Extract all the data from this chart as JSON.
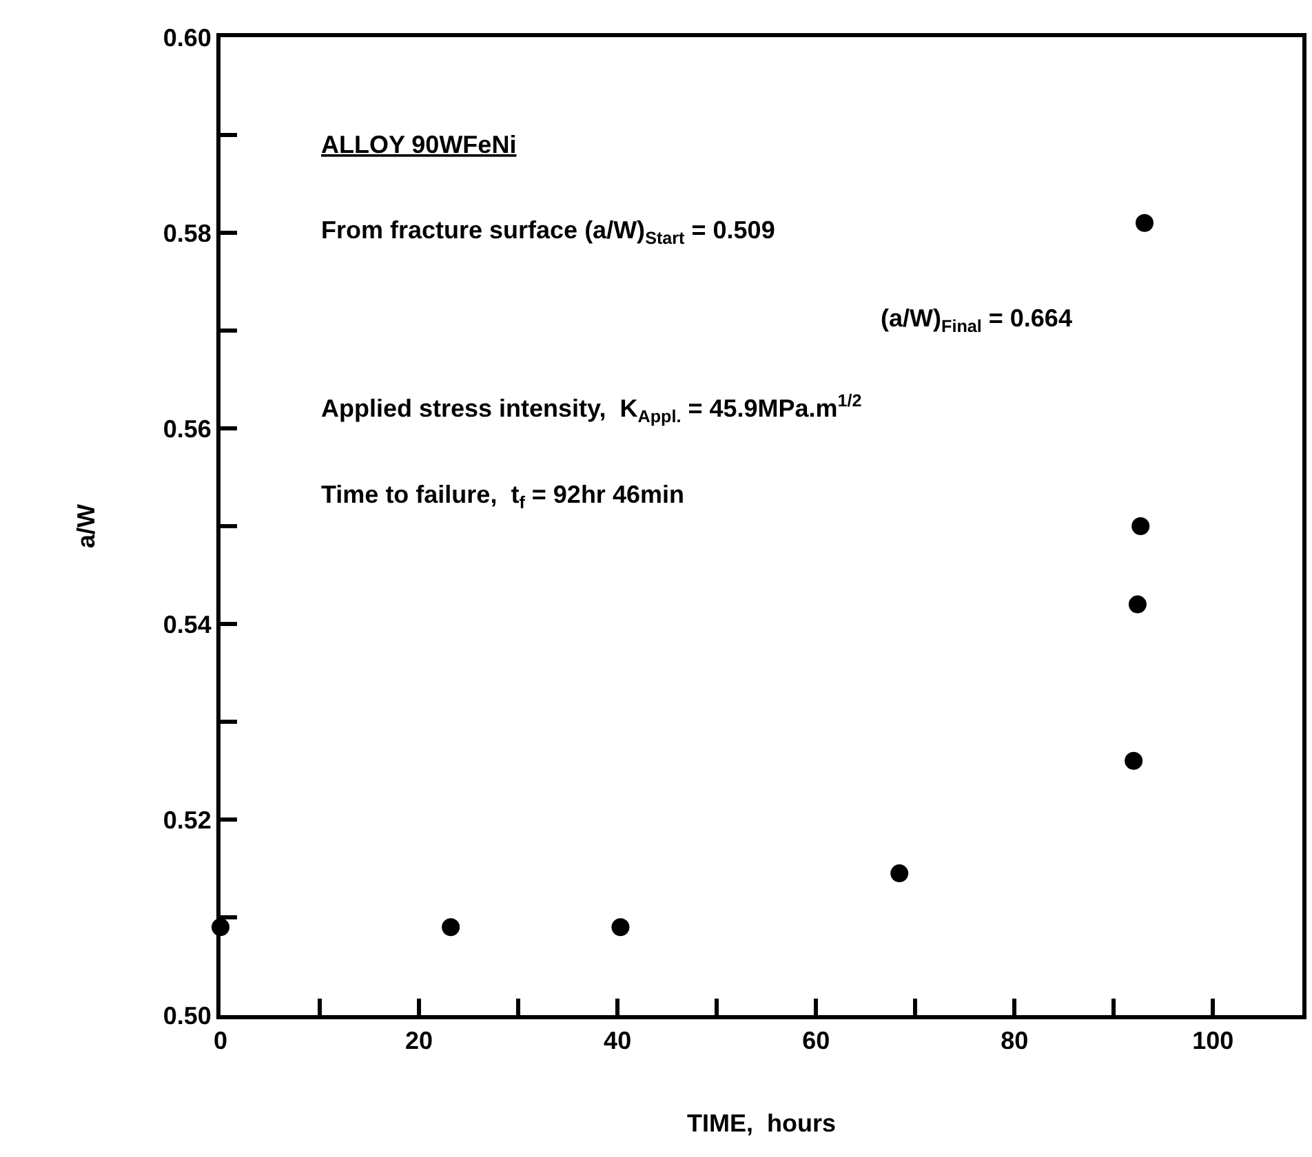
{
  "chart_data": {
    "type": "scatter",
    "xlabel": "TIME,  hours",
    "ylabel": "a/W",
    "x": [
      0,
      23.2,
      40.3,
      68.4,
      92.0,
      92.4,
      92.7,
      93.1
    ],
    "series": [
      {
        "color": "#000000",
        "values": [
          0.509,
          0.509,
          0.509,
          0.5145,
          0.526,
          0.542,
          0.55,
          0.581
        ]
      }
    ],
    "xlim": [
      0,
      109
    ],
    "ylim": [
      0.5,
      0.6
    ],
    "xticks": [
      0,
      {
        "value": 10,
        "label": null
      },
      20,
      {
        "value": 30,
        "label": null
      },
      40,
      {
        "value": 50,
        "label": null
      },
      60,
      {
        "value": 70,
        "label": null
      },
      80,
      {
        "value": 90,
        "label": null
      },
      100
    ],
    "yticks": [
      {
        "value": 0.5,
        "label": "0.50"
      },
      {
        "value": 0.51,
        "label": null
      },
      {
        "value": 0.52,
        "label": "0.52"
      },
      {
        "value": 0.53,
        "label": null
      },
      {
        "value": 0.54,
        "label": "0.54"
      },
      {
        "value": 0.55,
        "label": null
      },
      {
        "value": 0.56,
        "label": "0.56"
      },
      {
        "value": 0.57,
        "label": null
      },
      {
        "value": 0.58,
        "label": "0.58"
      },
      {
        "value": 0.59,
        "label": null
      },
      {
        "value": 0.6,
        "label": "0.60"
      }
    ],
    "annotations": [
      "ALLOY 90WFeNi",
      "From fracture surface (a/W)$_{Start}$ = 0.509",
      "(a/W)$_{Final}$ = 0.664",
      "Applied stress intensity,  K$_{Appl.}$ = 45.9MPa.m$^{1/2}$",
      "Time to failure,  t$_{f}$ = 92hr 46min"
    ],
    "marker": "circle",
    "legend": false
  }
}
